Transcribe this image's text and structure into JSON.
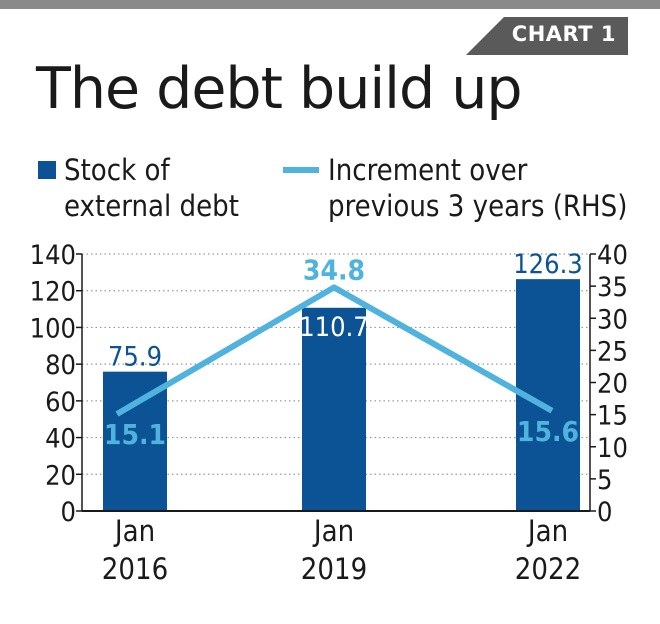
{
  "badge": "CHART 1",
  "title": "The debt build up",
  "legend": {
    "bar_label_line1": "Stock of",
    "bar_label_line2": "external debt",
    "line_label_line1": "Increment over",
    "line_label_line2": "previous 3 years (RHS)"
  },
  "colors": {
    "bar": "#0b5394",
    "line": "#4fb3dd",
    "text": "#1a1a1a",
    "badge_bg": "#5a5a5a"
  },
  "chart_data": {
    "type": "bar",
    "categories": [
      [
        "Jan",
        "2016"
      ],
      [
        "Jan",
        "2019"
      ],
      [
        "Jan",
        "2022"
      ]
    ],
    "series": [
      {
        "name": "Stock of external debt",
        "type": "bar",
        "axis": "left",
        "values": [
          75.9,
          110.7,
          126.3
        ],
        "labels": [
          "75.9",
          "110.7",
          "126.3"
        ]
      },
      {
        "name": "Increment over previous 3 years (RHS)",
        "type": "line",
        "axis": "right",
        "values": [
          15.1,
          34.8,
          15.6
        ],
        "labels": [
          "15.1",
          "34.8",
          "15.6"
        ]
      }
    ],
    "y_left": {
      "min": 0,
      "max": 140,
      "ticks": [
        0,
        20,
        40,
        60,
        80,
        100,
        120,
        140
      ]
    },
    "y_right": {
      "min": 0,
      "max": 40,
      "ticks": [
        0,
        5,
        10,
        15,
        20,
        25,
        30,
        35,
        40
      ]
    },
    "grid": "dotted horizontal"
  }
}
